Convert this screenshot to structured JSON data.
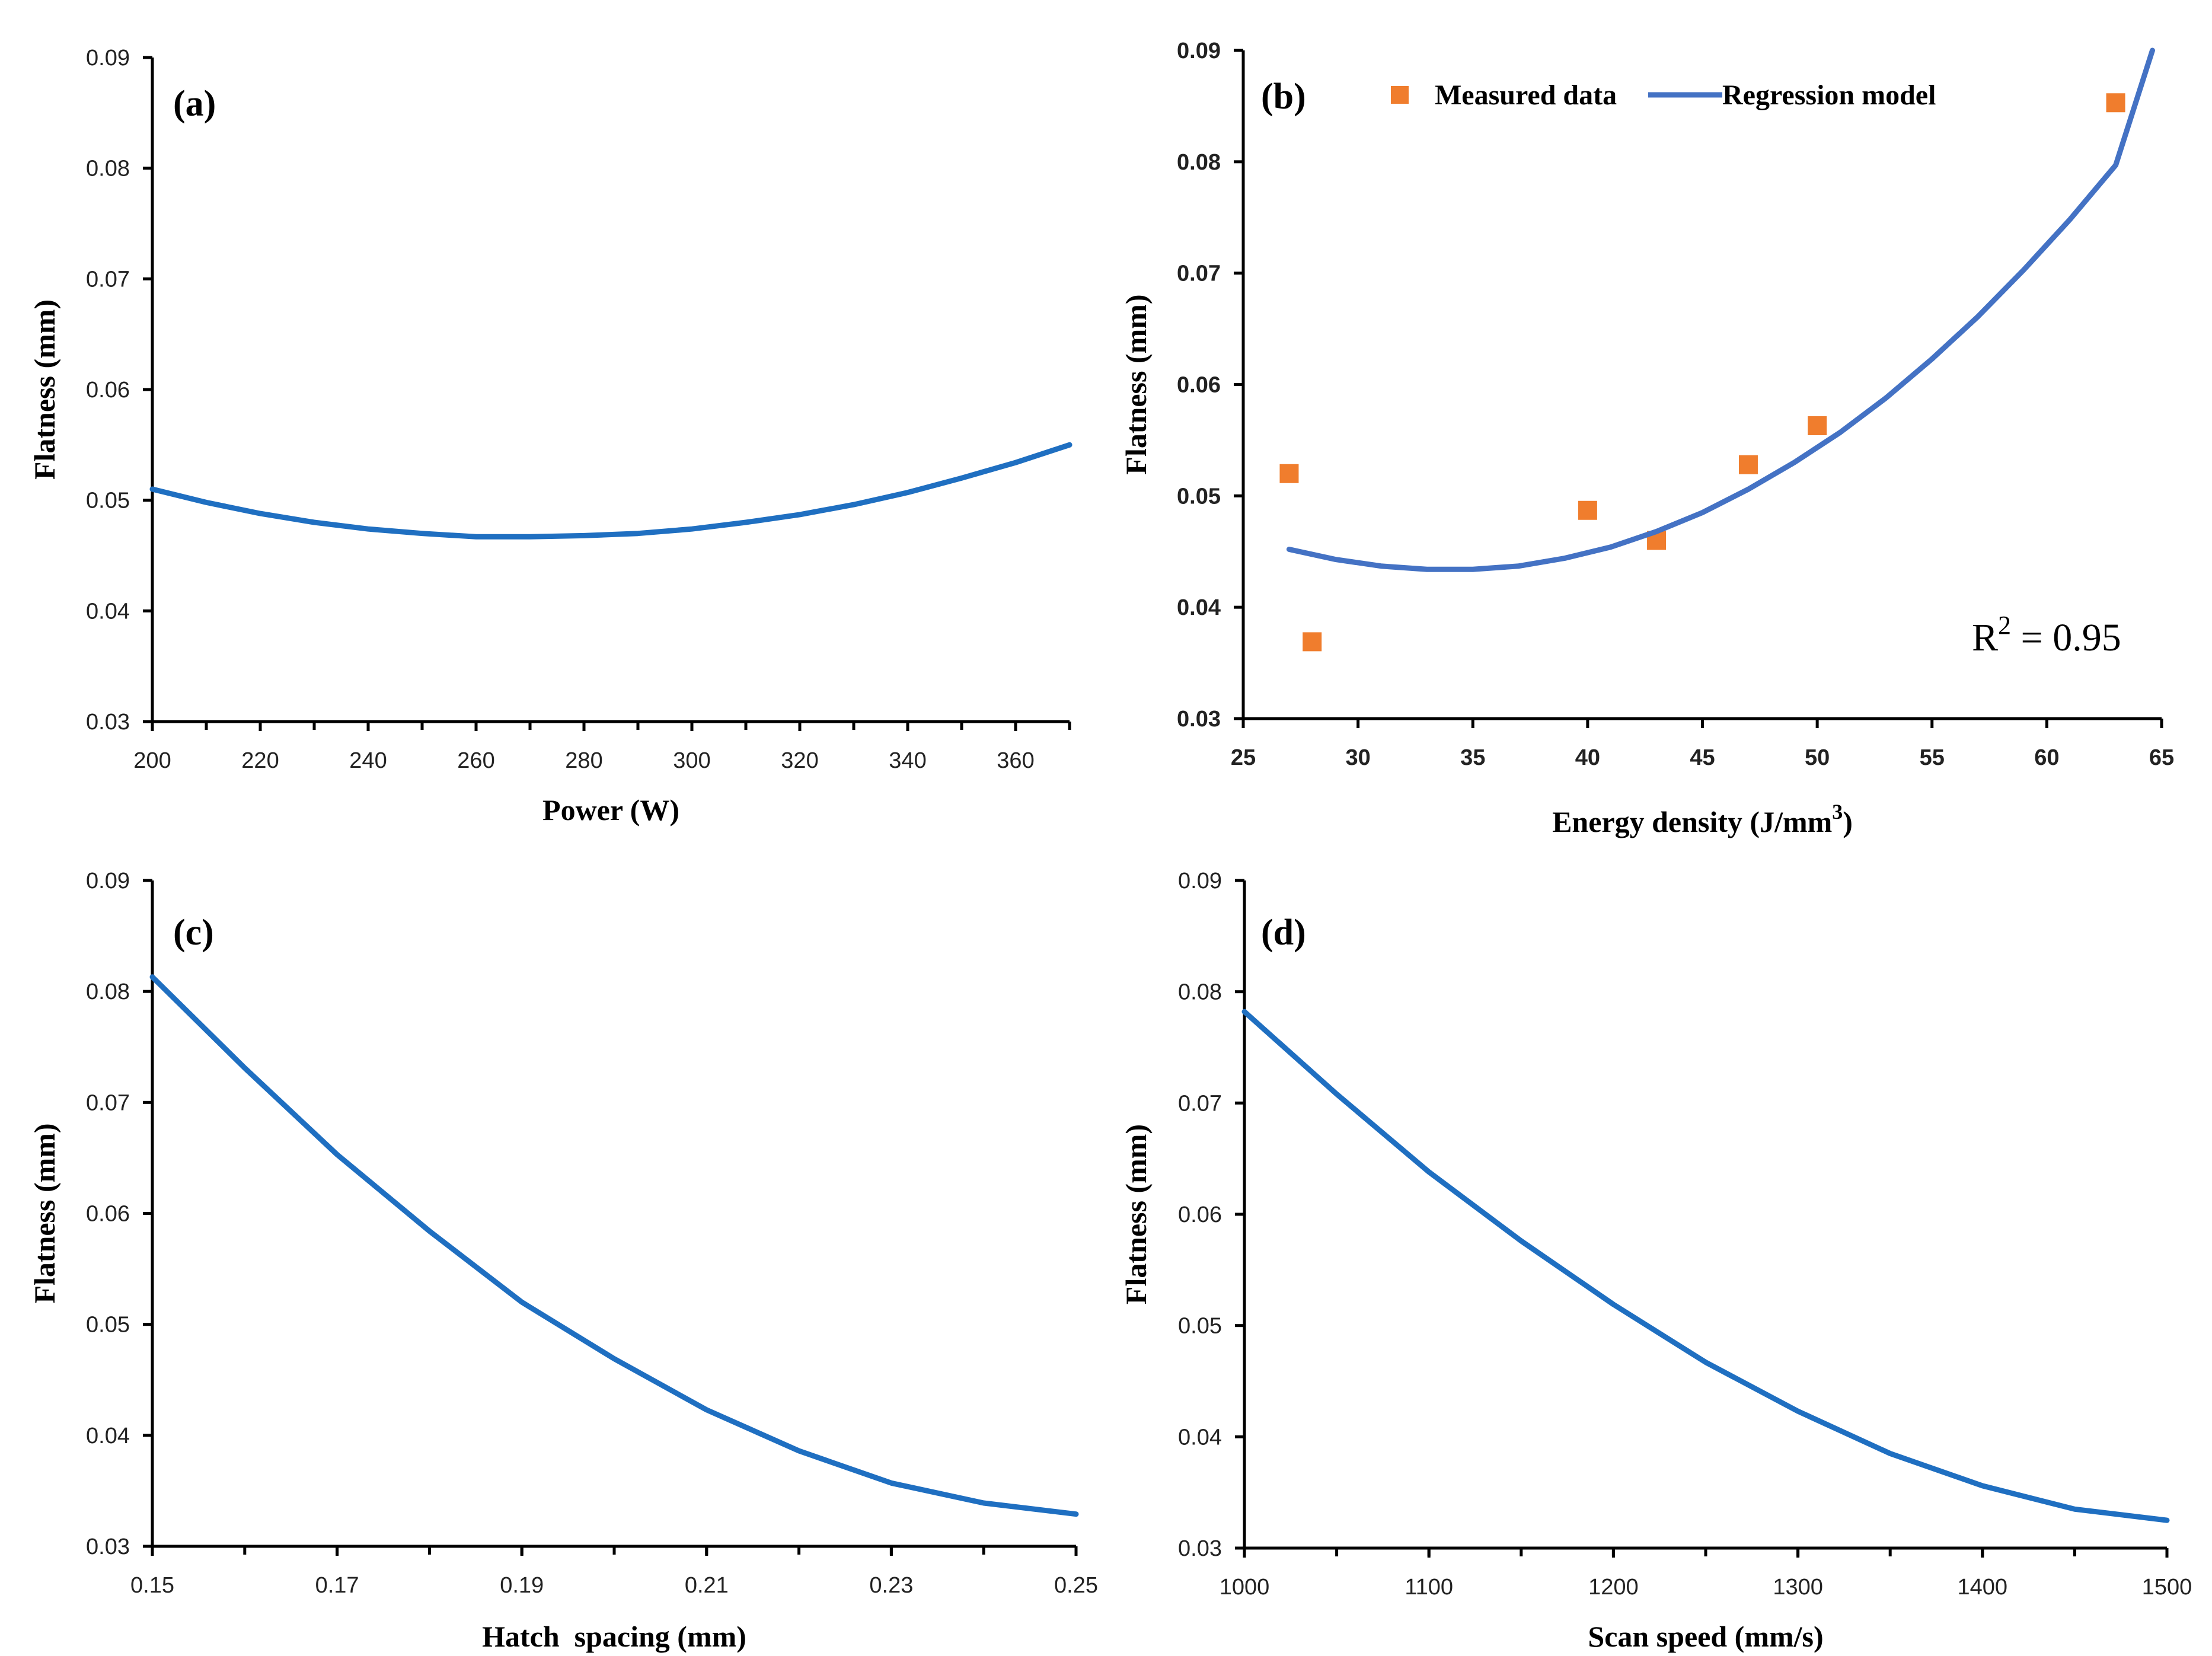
{
  "chart_data": [
    {
      "panel": "(a)",
      "type": "line",
      "xlabel": "Power (W)",
      "ylabel": "Flatness (mm)",
      "xlim": [
        200,
        370
      ],
      "ylim": [
        0.03,
        0.09
      ],
      "xticks": [
        200,
        220,
        240,
        260,
        280,
        300,
        320,
        340,
        360
      ],
      "yticks": [
        0.03,
        0.04,
        0.05,
        0.06,
        0.07,
        0.08,
        0.09
      ],
      "xtick_labels": [
        "200",
        "220",
        "240",
        "260",
        "280",
        "300",
        "320",
        "340",
        "360"
      ],
      "ytick_labels": [
        "0.03",
        "0.04",
        "0.05",
        "0.06",
        "0.07",
        "0.08",
        "0.09"
      ],
      "minor_xtick_step": 10,
      "grid": false,
      "series": [
        {
          "color": "#1f6fc1",
          "x": [
            200,
            210,
            220,
            230,
            240,
            250,
            260,
            270,
            280,
            290,
            300,
            310,
            320,
            330,
            340,
            350,
            360,
            370
          ],
          "y": [
            0.051,
            0.0498,
            0.0488,
            0.048,
            0.0474,
            0.047,
            0.0467,
            0.0467,
            0.0468,
            0.047,
            0.0474,
            0.048,
            0.0487,
            0.0496,
            0.0507,
            0.052,
            0.0534,
            0.055
          ]
        }
      ]
    },
    {
      "panel": "(b)",
      "type": "scatter",
      "xlabel": "Energy density (J/mm",
      "xlabel_sup": "3",
      "xlabel_end": ")",
      "ylabel": "Flatness (mm)",
      "xlim": [
        25,
        65
      ],
      "ylim": [
        0.03,
        0.09
      ],
      "xticks": [
        25,
        30,
        35,
        40,
        45,
        50,
        55,
        60,
        65
      ],
      "yticks": [
        0.03,
        0.04,
        0.05,
        0.06,
        0.07,
        0.08,
        0.09
      ],
      "xtick_labels": [
        "25",
        "30",
        "35",
        "40",
        "45",
        "50",
        "55",
        "60",
        "65"
      ],
      "ytick_labels": [
        "0.03",
        "0.04",
        "0.05",
        "0.06",
        "0.07",
        "0.08",
        "0.09"
      ],
      "bold_ticks": true,
      "grid": false,
      "legend": "top",
      "annotation": {
        "text": "R",
        "sup": "2",
        "rest": " = 0.95"
      },
      "series": [
        {
          "name": "Measured data",
          "kind": "points",
          "color": "#f07d2d",
          "x": [
            27,
            28,
            40,
            43,
            47,
            50,
            63
          ],
          "y": [
            0.052,
            0.0369,
            0.0487,
            0.046,
            0.0528,
            0.0563,
            0.0853
          ]
        },
        {
          "name": "Regression model",
          "kind": "line",
          "color": "#4472c4",
          "x": [
            27,
            29,
            31,
            33,
            35,
            37,
            39,
            41,
            43,
            45,
            47,
            49,
            51,
            53,
            55,
            57,
            59,
            61,
            63,
            64.6
          ],
          "y": [
            0.0452,
            0.0443,
            0.0437,
            0.0434,
            0.0434,
            0.0437,
            0.0444,
            0.0454,
            0.0468,
            0.0485,
            0.0506,
            0.053,
            0.0557,
            0.0588,
            0.0623,
            0.0661,
            0.0703,
            0.0748,
            0.0797,
            0.09
          ]
        }
      ]
    },
    {
      "panel": "(c)",
      "type": "line",
      "xlabel": "Hatch  spacing (mm)",
      "ylabel": "Flatness (mm)",
      "xlim": [
        0.15,
        0.25
      ],
      "ylim": [
        0.03,
        0.09
      ],
      "xticks": [
        0.15,
        0.17,
        0.19,
        0.21,
        0.23,
        0.25
      ],
      "yticks": [
        0.03,
        0.04,
        0.05,
        0.06,
        0.07,
        0.08,
        0.09
      ],
      "xtick_labels": [
        "0.15",
        "0.17",
        "0.19",
        "0.21",
        "0.23",
        "0.25"
      ],
      "ytick_labels": [
        "0.03",
        "0.04",
        "0.05",
        "0.06",
        "0.07",
        "0.08",
        "0.09"
      ],
      "minor_xtick_step": 0.01,
      "grid": false,
      "series": [
        {
          "color": "#1f6fc1",
          "x": [
            0.15,
            0.16,
            0.17,
            0.18,
            0.19,
            0.2,
            0.21,
            0.22,
            0.23,
            0.24,
            0.25
          ],
          "y": [
            0.0813,
            0.0731,
            0.0653,
            0.0584,
            0.052,
            0.0469,
            0.0423,
            0.0386,
            0.0357,
            0.0339,
            0.0329
          ]
        }
      ]
    },
    {
      "panel": "(d)",
      "type": "line",
      "xlabel": "Scan speed (mm/s)",
      "ylabel": "Flatness (mm)",
      "xlim": [
        1000,
        1500
      ],
      "ylim": [
        0.03,
        0.09
      ],
      "xticks": [
        1000,
        1100,
        1200,
        1300,
        1400,
        1500
      ],
      "yticks": [
        0.03,
        0.04,
        0.05,
        0.06,
        0.07,
        0.08,
        0.09
      ],
      "xtick_labels": [
        "1000",
        "1100",
        "1200",
        "1300",
        "1400",
        "1500"
      ],
      "ytick_labels": [
        "0.03",
        "0.04",
        "0.05",
        "0.06",
        "0.07",
        "0.08",
        "0.09"
      ],
      "minor_xtick_step": 50,
      "grid": false,
      "series": [
        {
          "color": "#1f6fc1",
          "x": [
            1000,
            1050,
            1100,
            1150,
            1200,
            1250,
            1300,
            1350,
            1400,
            1450,
            1500
          ],
          "y": [
            0.0782,
            0.0708,
            0.0638,
            0.0576,
            0.0519,
            0.0467,
            0.0423,
            0.0385,
            0.0356,
            0.0335,
            0.0325
          ]
        }
      ]
    }
  ]
}
